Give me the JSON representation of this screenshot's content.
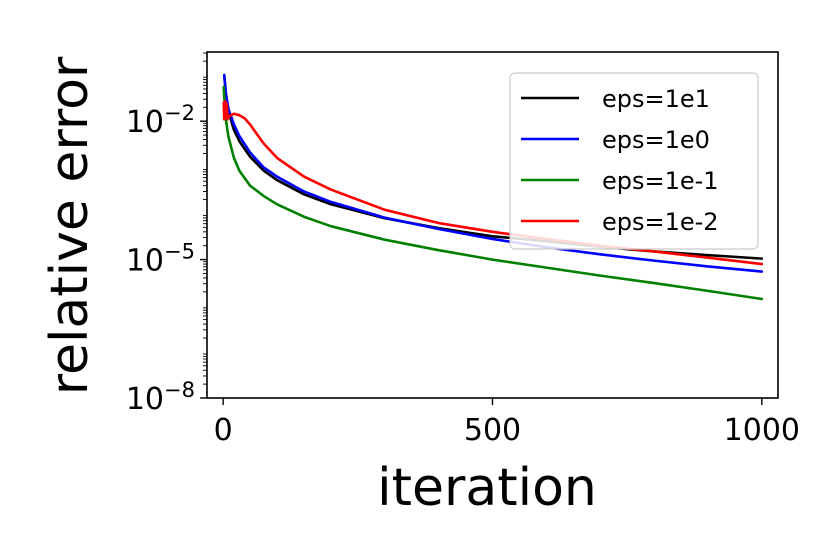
{
  "chart_data": {
    "type": "line",
    "title": "",
    "xlabel": "iteration",
    "ylabel": "relative error",
    "xlim": [
      -30,
      1030
    ],
    "ylim_log10": [
      -8,
      -0.5
    ],
    "yscale": "log",
    "grid": false,
    "legend_position": "upper-right",
    "x_ticks": [
      0,
      500,
      1000
    ],
    "x_tick_labels": [
      "0",
      "500",
      "1000"
    ],
    "y_ticks_log10": [
      -8,
      -5,
      -2
    ],
    "y_tick_bases": [
      "10",
      "10",
      "10"
    ],
    "y_tick_exponents": [
      "−8",
      "−5",
      "−2"
    ],
    "series": [
      {
        "name": "eps=1e1",
        "color": "#000000",
        "x": [
          2,
          5,
          10,
          20,
          30,
          50,
          75,
          100,
          150,
          200,
          300,
          400,
          500,
          600,
          700,
          800,
          900,
          1000
        ],
        "y": [
          0.1,
          0.04,
          0.016,
          0.0065,
          0.0037,
          0.0017,
          0.00085,
          0.00053,
          0.00026,
          0.000158,
          7.9e-05,
          4.8e-05,
          3.2e-05,
          2.5e-05,
          1.9e-05,
          1.5e-05,
          1.25e-05,
          1.05e-05
        ]
      },
      {
        "name": "eps=1e0",
        "color": "#0000ff",
        "x": [
          2,
          5,
          10,
          20,
          30,
          50,
          75,
          100,
          150,
          200,
          300,
          400,
          500,
          600,
          700,
          800,
          900,
          1000
        ],
        "y": [
          0.1,
          0.04,
          0.018,
          0.0085,
          0.0048,
          0.0021,
          0.001,
          0.00063,
          0.0003,
          0.000178,
          8.1e-05,
          4.6e-05,
          2.8e-05,
          1.85e-05,
          1.3e-05,
          9.5e-06,
          7.1e-06,
          5.5e-06
        ]
      },
      {
        "name": "eps=1e-1",
        "color": "#008000",
        "x": [
          1,
          3,
          6,
          10,
          20,
          30,
          50,
          75,
          100,
          150,
          200,
          300,
          400,
          500,
          600,
          700,
          800,
          900,
          1000
        ],
        "y": [
          0.055,
          0.022,
          0.009,
          0.0045,
          0.0016,
          0.00085,
          0.0004,
          0.00024,
          0.000158,
          8.5e-05,
          5.3e-05,
          2.7e-05,
          1.6e-05,
          1e-05,
          6.7e-06,
          4.5e-06,
          3.1e-06,
          2.1e-06,
          1.4e-06
        ]
      },
      {
        "name": "eps=1e-2",
        "color": "#ff0000",
        "x": [
          1,
          2,
          3,
          4,
          5,
          6,
          7,
          8,
          9,
          10,
          12,
          15,
          20,
          30,
          40,
          50,
          60,
          75,
          100,
          150,
          200,
          300,
          400,
          500,
          600,
          700,
          800,
          900,
          1000
        ],
        "y": [
          0.025,
          0.011,
          0.027,
          0.012,
          0.026,
          0.012,
          0.023,
          0.011,
          0.013,
          0.012,
          0.013,
          0.0135,
          0.0145,
          0.0135,
          0.0115,
          0.0085,
          0.0058,
          0.0033,
          0.0016,
          0.00063,
          0.00033,
          0.00012,
          6.2e-05,
          4e-05,
          2.8e-05,
          2e-05,
          1.5e-05,
          1.1e-05,
          8e-06
        ]
      }
    ]
  }
}
